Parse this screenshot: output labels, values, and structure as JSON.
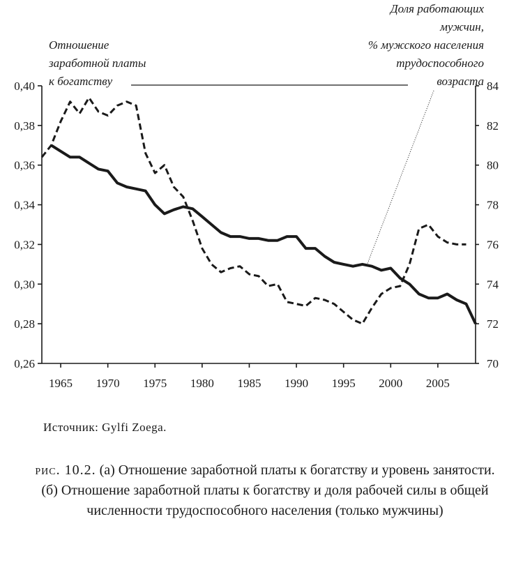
{
  "chart_data": {
    "type": "line",
    "title": "",
    "xlabel": "",
    "ylabel_left": "Отношение заработной платы к богатству",
    "ylabel_right": "Доля работающих мужчин, % мужского населения трудоспособного возраста",
    "x_ticks": [
      1965,
      1970,
      1975,
      1980,
      1985,
      1990,
      1995,
      2000,
      2005
    ],
    "x_range": [
      1963,
      2009
    ],
    "y_left": {
      "range": [
        0.26,
        0.4
      ],
      "ticks": [
        "0,26",
        "0,28",
        "0,30",
        "0,32",
        "0,34",
        "0,36",
        "0,38",
        "0,40"
      ],
      "tick_values": [
        0.26,
        0.28,
        0.3,
        0.32,
        0.34,
        0.36,
        0.38,
        0.4
      ]
    },
    "y_right": {
      "range": [
        70,
        84
      ],
      "ticks": [
        "70",
        "72",
        "74",
        "76",
        "78",
        "80",
        "82",
        "84"
      ],
      "tick_values": [
        70,
        72,
        74,
        76,
        78,
        80,
        82,
        84
      ]
    },
    "grid": false,
    "series": [
      {
        "name": "Отношение заработной платы к богатству",
        "axis": "left",
        "style": "solid",
        "x": [
          1964,
          1965,
          1966,
          1967,
          1968,
          1969,
          1970,
          1971,
          1972,
          1973,
          1974,
          1975,
          1976,
          1977,
          1978,
          1979,
          1980,
          1981,
          1982,
          1983,
          1984,
          1985,
          1986,
          1987,
          1988,
          1989,
          1990,
          1991,
          1992,
          1993,
          1994,
          1995,
          1996,
          1997,
          1998,
          1999,
          2000,
          2001,
          2002,
          2003,
          2004,
          2005,
          2006,
          2007,
          2008,
          2009
        ],
        "values": [
          0.37,
          0.367,
          0.364,
          0.364,
          0.361,
          0.358,
          0.357,
          0.351,
          0.349,
          0.348,
          0.347,
          0.34,
          0.3355,
          0.3375,
          0.339,
          0.338,
          0.334,
          0.33,
          0.326,
          0.324,
          0.324,
          0.323,
          0.323,
          0.322,
          0.322,
          0.324,
          0.324,
          0.318,
          0.318,
          0.314,
          0.311,
          0.31,
          0.309,
          0.31,
          0.309,
          0.307,
          0.308,
          0.303,
          0.3,
          0.295,
          0.293,
          0.293,
          0.295,
          0.292,
          0.29,
          0.28
        ]
      },
      {
        "name": "Доля работающих мужчин, % мужского населения трудоспособного возраста",
        "axis": "right",
        "style": "dashed",
        "x": [
          1963,
          1964,
          1965,
          1966,
          1967,
          1968,
          1969,
          1970,
          1971,
          1972,
          1973,
          1974,
          1975,
          1976,
          1977,
          1978,
          1979,
          1980,
          1981,
          1982,
          1983,
          1984,
          1985,
          1986,
          1987,
          1988,
          1989,
          1990,
          1991,
          1992,
          1993,
          1994,
          1995,
          1996,
          1997,
          1998,
          1999,
          2000,
          2001,
          2002,
          2003,
          2004,
          2005,
          2006,
          2007,
          2008
        ],
        "values": [
          80.4,
          81.0,
          82.2,
          83.2,
          82.6,
          83.4,
          82.7,
          82.5,
          83.0,
          83.2,
          83.0,
          80.6,
          79.6,
          80.0,
          78.9,
          78.4,
          77.2,
          75.8,
          75.0,
          74.6,
          74.8,
          74.9,
          74.5,
          74.4,
          73.9,
          74.0,
          73.1,
          73.0,
          72.9,
          73.3,
          73.2,
          73.0,
          72.6,
          72.2,
          72.0,
          72.8,
          73.5,
          73.8,
          73.9,
          75.0,
          76.8,
          77.0,
          76.4,
          76.1,
          76.0,
          76.0
        ]
      }
    ],
    "annotations": [
      "Отношение заработной платы к богатству",
      "Доля работающих мужчин, % мужского населения трудоспособного возраста"
    ]
  },
  "labels": {
    "left_series": [
      "Отношение",
      "заработной платы",
      "к богатству"
    ],
    "right_series": [
      "Доля работающих",
      "мужчин,",
      "% мужского населения",
      "трудоспособного",
      "возраста"
    ]
  },
  "source": "Источник: Gylfi Zoega.",
  "caption": {
    "fig": "рис. 10.2.",
    "text": " (а) Отношение заработной платы к богатству и уровень занятости. (б) Отношение заработной платы к богатству и доля рабочей силы в общей численности трудоспособного населения (только мужчины)"
  }
}
